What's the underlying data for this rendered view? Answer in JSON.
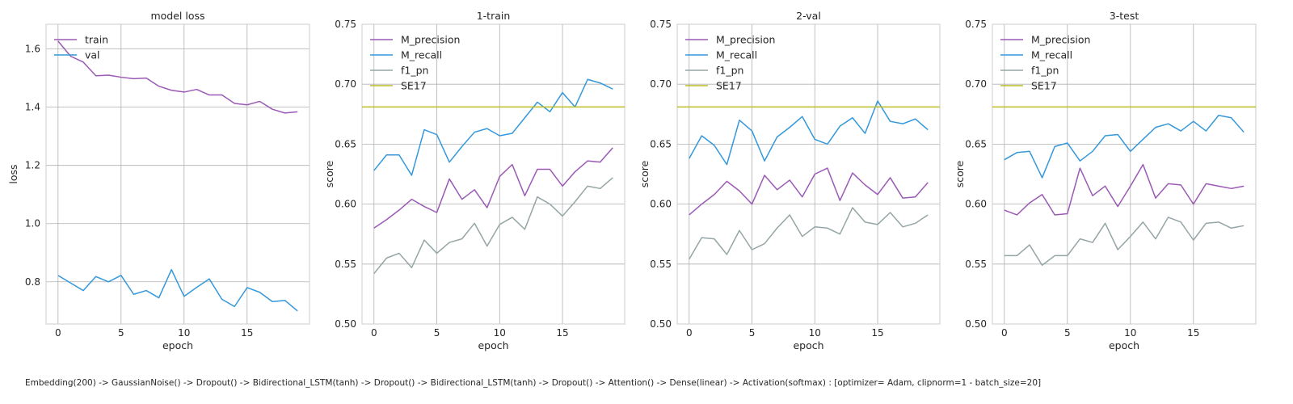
{
  "footer_caption": "Embedding(200) -> GaussianNoise() -> Dropout() -> Bidirectional_LSTM(tanh) -> Dropout() -> Bidirectional_LSTM(tanh) -> Dropout() -> Attention() -> Dense(linear) -> Activation(softmax) : [optimizer= Adam, clipnorm=1 - batch_size=20]",
  "colors": {
    "purple": "#9b59b6",
    "blue": "#3498db",
    "gray": "#95a5a6",
    "olive": "#bcbd22",
    "grid": "#b0b0b0"
  },
  "chart_data": [
    {
      "type": "line",
      "title": "model loss",
      "xlabel": "epoch",
      "ylabel": "loss",
      "xlim": [
        -0.95,
        19.95
      ],
      "ylim": [
        0.655,
        1.685
      ],
      "xticks": [
        0,
        5,
        10,
        15
      ],
      "yticks": [
        0.8,
        1.0,
        1.2,
        1.4,
        1.6
      ],
      "ytick_labels": [
        "0.8",
        "1.0",
        "1.2",
        "1.4",
        "1.6"
      ],
      "grid": true,
      "legend": "upper left",
      "series": [
        {
          "name": "train",
          "color": "#9b59b6",
          "x": [
            0,
            1,
            2,
            3,
            4,
            5,
            6,
            7,
            8,
            9,
            10,
            11,
            12,
            13,
            14,
            15,
            16,
            17,
            18,
            19
          ],
          "values": [
            1.627,
            1.575,
            1.555,
            1.508,
            1.51,
            1.503,
            1.498,
            1.5,
            1.472,
            1.458,
            1.452,
            1.461,
            1.442,
            1.442,
            1.413,
            1.408,
            1.42,
            1.393,
            1.38,
            1.384
          ]
        },
        {
          "name": "val",
          "color": "#3498db",
          "x": [
            0,
            1,
            2,
            3,
            4,
            5,
            6,
            7,
            8,
            9,
            10,
            11,
            12,
            13,
            14,
            15,
            16,
            17,
            18,
            19
          ],
          "values": [
            0.822,
            0.796,
            0.77,
            0.818,
            0.8,
            0.822,
            0.757,
            0.77,
            0.745,
            0.842,
            0.75,
            0.781,
            0.81,
            0.74,
            0.715,
            0.78,
            0.764,
            0.732,
            0.736,
            0.7
          ]
        }
      ]
    },
    {
      "type": "line",
      "title": "1-train",
      "xlabel": "epoch",
      "ylabel": "score",
      "xlim": [
        -0.95,
        19.95
      ],
      "ylim": [
        0.5,
        0.75
      ],
      "xticks": [
        0,
        5,
        10,
        15
      ],
      "yticks": [
        0.5,
        0.55,
        0.6,
        0.65,
        0.7,
        0.75
      ],
      "ytick_labels": [
        "0.50",
        "0.55",
        "0.60",
        "0.65",
        "0.70",
        "0.75"
      ],
      "grid": true,
      "legend": "upper left",
      "series": [
        {
          "name": "M_precision",
          "color": "#9b59b6",
          "x": [
            0,
            1,
            2,
            3,
            4,
            5,
            6,
            7,
            8,
            9,
            10,
            11,
            12,
            13,
            14,
            15,
            16,
            17,
            18,
            19
          ],
          "values": [
            0.58,
            0.587,
            0.595,
            0.604,
            0.598,
            0.593,
            0.621,
            0.604,
            0.612,
            0.597,
            0.623,
            0.633,
            0.607,
            0.629,
            0.629,
            0.615,
            0.627,
            0.636,
            0.635,
            0.647
          ]
        },
        {
          "name": "M_recall",
          "color": "#3498db",
          "x": [
            0,
            1,
            2,
            3,
            4,
            5,
            6,
            7,
            8,
            9,
            10,
            11,
            12,
            13,
            14,
            15,
            16,
            17,
            18,
            19
          ],
          "values": [
            0.628,
            0.641,
            0.641,
            0.624,
            0.662,
            0.658,
            0.635,
            0.648,
            0.66,
            0.663,
            0.657,
            0.659,
            0.672,
            0.685,
            0.677,
            0.693,
            0.681,
            0.704,
            0.701,
            0.696
          ]
        },
        {
          "name": "f1_pn",
          "color": "#95a5a6",
          "x": [
            0,
            1,
            2,
            3,
            4,
            5,
            6,
            7,
            8,
            9,
            10,
            11,
            12,
            13,
            14,
            15,
            16,
            17,
            18,
            19
          ],
          "values": [
            0.542,
            0.555,
            0.559,
            0.547,
            0.57,
            0.559,
            0.568,
            0.571,
            0.584,
            0.565,
            0.583,
            0.589,
            0.579,
            0.606,
            0.6,
            0.59,
            0.602,
            0.615,
            0.613,
            0.622
          ]
        },
        {
          "name": "SE17",
          "color": "#bcbd22",
          "x": [
            -0.95,
            19.95
          ],
          "values": [
            0.681,
            0.681
          ]
        }
      ]
    },
    {
      "type": "line",
      "title": "2-val",
      "xlabel": "epoch",
      "ylabel": "score",
      "xlim": [
        -0.95,
        19.95
      ],
      "ylim": [
        0.5,
        0.75
      ],
      "xticks": [
        0,
        5,
        10,
        15
      ],
      "yticks": [
        0.5,
        0.55,
        0.6,
        0.65,
        0.7,
        0.75
      ],
      "ytick_labels": [
        "0.50",
        "0.55",
        "0.60",
        "0.65",
        "0.70",
        "0.75"
      ],
      "grid": true,
      "legend": "upper left",
      "series": [
        {
          "name": "M_precision",
          "color": "#9b59b6",
          "x": [
            0,
            1,
            2,
            3,
            4,
            5,
            6,
            7,
            8,
            9,
            10,
            11,
            12,
            13,
            14,
            15,
            16,
            17,
            18,
            19
          ],
          "values": [
            0.591,
            0.6,
            0.608,
            0.619,
            0.611,
            0.6,
            0.624,
            0.612,
            0.62,
            0.606,
            0.625,
            0.63,
            0.603,
            0.626,
            0.616,
            0.608,
            0.622,
            0.605,
            0.606,
            0.618
          ]
        },
        {
          "name": "M_recall",
          "color": "#3498db",
          "x": [
            0,
            1,
            2,
            3,
            4,
            5,
            6,
            7,
            8,
            9,
            10,
            11,
            12,
            13,
            14,
            15,
            16,
            17,
            18,
            19
          ],
          "values": [
            0.638,
            0.657,
            0.649,
            0.633,
            0.67,
            0.661,
            0.636,
            0.656,
            0.664,
            0.673,
            0.654,
            0.65,
            0.665,
            0.672,
            0.659,
            0.686,
            0.669,
            0.667,
            0.671,
            0.662
          ]
        },
        {
          "name": "f1_pn",
          "color": "#95a5a6",
          "x": [
            0,
            1,
            2,
            3,
            4,
            5,
            6,
            7,
            8,
            9,
            10,
            11,
            12,
            13,
            14,
            15,
            16,
            17,
            18,
            19
          ],
          "values": [
            0.554,
            0.572,
            0.571,
            0.558,
            0.578,
            0.562,
            0.567,
            0.58,
            0.591,
            0.573,
            0.581,
            0.58,
            0.575,
            0.597,
            0.585,
            0.583,
            0.593,
            0.581,
            0.584,
            0.591
          ]
        },
        {
          "name": "SE17",
          "color": "#bcbd22",
          "x": [
            -0.95,
            19.95
          ],
          "values": [
            0.681,
            0.681
          ]
        }
      ]
    },
    {
      "type": "line",
      "title": "3-test",
      "xlabel": "epoch",
      "ylabel": "score",
      "xlim": [
        -0.95,
        19.95
      ],
      "ylim": [
        0.5,
        0.75
      ],
      "xticks": [
        0,
        5,
        10,
        15
      ],
      "yticks": [
        0.5,
        0.55,
        0.6,
        0.65,
        0.7,
        0.75
      ],
      "ytick_labels": [
        "0.50",
        "0.55",
        "0.60",
        "0.65",
        "0.70",
        "0.75"
      ],
      "grid": true,
      "legend": "upper left",
      "series": [
        {
          "name": "M_precision",
          "color": "#9b59b6",
          "x": [
            0,
            1,
            2,
            3,
            4,
            5,
            6,
            7,
            8,
            9,
            10,
            11,
            12,
            13,
            14,
            15,
            16,
            17,
            18,
            19
          ],
          "values": [
            0.595,
            0.591,
            0.601,
            0.608,
            0.591,
            0.592,
            0.63,
            0.607,
            0.615,
            0.598,
            0.615,
            0.633,
            0.605,
            0.617,
            0.616,
            0.6,
            0.617,
            0.615,
            0.613,
            0.615
          ]
        },
        {
          "name": "M_recall",
          "color": "#3498db",
          "x": [
            0,
            1,
            2,
            3,
            4,
            5,
            6,
            7,
            8,
            9,
            10,
            11,
            12,
            13,
            14,
            15,
            16,
            17,
            18,
            19
          ],
          "values": [
            0.637,
            0.643,
            0.644,
            0.622,
            0.648,
            0.651,
            0.636,
            0.644,
            0.657,
            0.658,
            0.644,
            0.654,
            0.664,
            0.667,
            0.661,
            0.669,
            0.661,
            0.674,
            0.672,
            0.66
          ]
        },
        {
          "name": "f1_pn",
          "color": "#95a5a6",
          "x": [
            0,
            1,
            2,
            3,
            4,
            5,
            6,
            7,
            8,
            9,
            10,
            11,
            12,
            13,
            14,
            15,
            16,
            17,
            18,
            19
          ],
          "values": [
            0.557,
            0.557,
            0.566,
            0.549,
            0.557,
            0.557,
            0.571,
            0.568,
            0.584,
            0.562,
            0.573,
            0.585,
            0.571,
            0.589,
            0.585,
            0.57,
            0.584,
            0.585,
            0.58,
            0.582
          ]
        },
        {
          "name": "SE17",
          "color": "#bcbd22",
          "x": [
            -0.95,
            19.95
          ],
          "values": [
            0.681,
            0.681
          ]
        }
      ]
    }
  ]
}
